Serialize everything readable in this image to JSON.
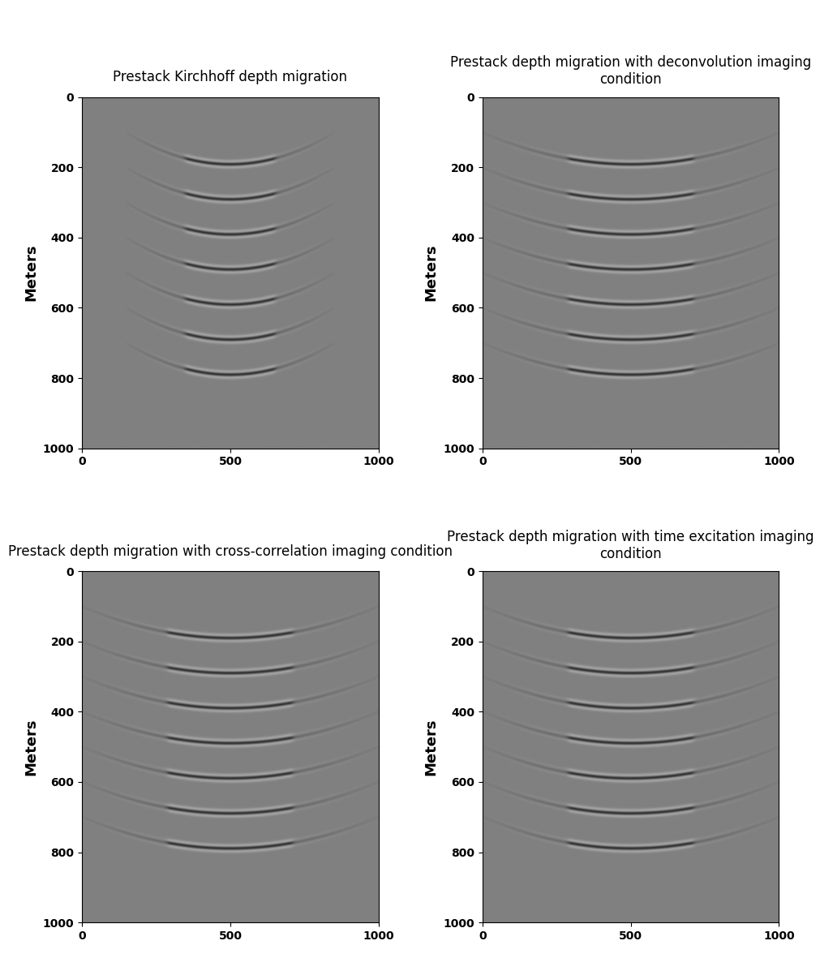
{
  "chart_data": [
    {
      "type": "image",
      "title": "Prestack Kirchhoff depth migration",
      "ylabel": "Meters",
      "color": "gray",
      "xlim": [
        0,
        1000
      ],
      "xticks": [
        0,
        500,
        1000
      ],
      "ylim": [
        1000,
        0
      ],
      "yticks": [
        0,
        200,
        400,
        600,
        800,
        1000
      ],
      "reflector_depths": [
        190,
        290,
        390,
        490,
        590,
        690,
        790
      ],
      "reflector_x_range": [
        150,
        850
      ]
    },
    {
      "type": "image",
      "title": "Prestack depth migration with deconvolution imaging condition",
      "ylabel": "Meters",
      "color": "gray",
      "xlim": [
        0,
        1000
      ],
      "xticks": [
        0,
        500,
        1000
      ],
      "ylim": [
        1000,
        0
      ],
      "yticks": [
        0,
        200,
        400,
        600,
        800,
        1000
      ],
      "reflector_depths": [
        190,
        290,
        390,
        490,
        590,
        690,
        790
      ],
      "reflector_x_range": [
        0,
        1000
      ]
    },
    {
      "type": "image",
      "title": "Prestack depth migration with cross-correlation imaging condition",
      "ylabel": "Meters",
      "color": "gray",
      "xlim": [
        0,
        1000
      ],
      "xticks": [
        0,
        500,
        1000
      ],
      "ylim": [
        1000,
        0
      ],
      "yticks": [
        0,
        200,
        400,
        600,
        800,
        1000
      ],
      "reflector_depths": [
        190,
        290,
        390,
        490,
        590,
        690,
        790
      ],
      "reflector_x_range": [
        0,
        1000
      ]
    },
    {
      "type": "image",
      "title": "Prestack depth migration with time excitation imaging condition",
      "ylabel": "Meters",
      "color": "gray",
      "xlim": [
        0,
        1000
      ],
      "xticks": [
        0,
        500,
        1000
      ],
      "ylim": [
        1000,
        0
      ],
      "yticks": [
        0,
        200,
        400,
        600,
        800,
        1000
      ],
      "reflector_depths": [
        190,
        290,
        390,
        490,
        590,
        690,
        790
      ],
      "reflector_x_range": [
        0,
        1000
      ]
    }
  ]
}
